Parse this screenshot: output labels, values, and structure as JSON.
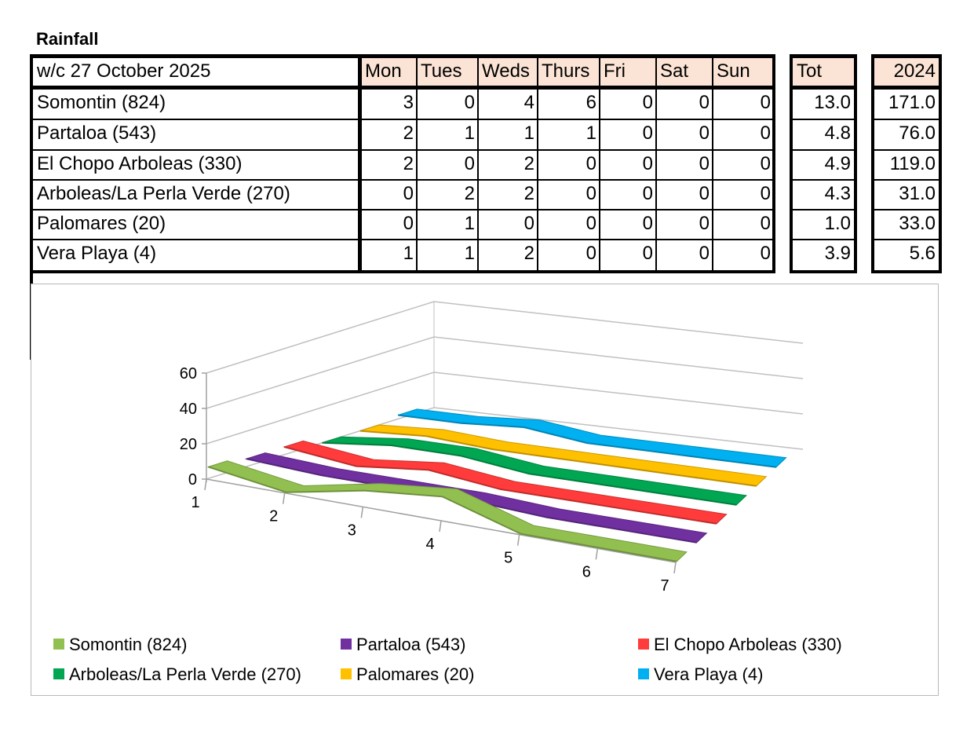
{
  "title": "Rainfall",
  "table": {
    "corner": "w/c 27 October  2025",
    "days": [
      "Mon",
      "Tues",
      "Weds",
      "Thurs",
      "Fri",
      "Sat",
      "Sun"
    ],
    "tot_header": "Tot",
    "year_header": "2024",
    "rows": [
      {
        "name": "Somontin (824)",
        "values": [
          "3",
          "0",
          "4",
          "6",
          "0",
          "0",
          "0"
        ],
        "tot": "13.0",
        "year": "171.0"
      },
      {
        "name": "Partaloa (543)",
        "values": [
          "2",
          "1",
          "1",
          "1",
          "0",
          "0",
          "0"
        ],
        "tot": "4.8",
        "year": "76.0"
      },
      {
        "name": "El Chopo Arboleas (330)",
        "values": [
          "2",
          "0",
          "2",
          "0",
          "0",
          "0",
          "0"
        ],
        "tot": "4.9",
        "year": "119.0"
      },
      {
        "name": "Arboleas/La Perla Verde (270)",
        "values": [
          "0",
          "2",
          "2",
          "0",
          "0",
          "0",
          "0"
        ],
        "tot": "4.3",
        "year": "31.0"
      },
      {
        "name": "Palomares (20)",
        "values": [
          "0",
          "1",
          "0",
          "0",
          "0",
          "0",
          "0"
        ],
        "tot": "1.0",
        "year": "33.0"
      },
      {
        "name": "Vera Playa (4)",
        "values": [
          "1",
          "1",
          "2",
          "0",
          "0",
          "0",
          "0"
        ],
        "tot": "3.9",
        "year": "5.6"
      }
    ]
  },
  "chart_data": {
    "type": "line",
    "style": "3d-ribbon",
    "x": [
      1,
      2,
      3,
      4,
      5,
      6,
      7
    ],
    "x_tick_labels": [
      "1",
      "2",
      "3",
      "4",
      "5",
      "6",
      "7"
    ],
    "y_tick_labels": [
      "0",
      "20",
      "40",
      "60"
    ],
    "ylim": [
      0,
      60
    ],
    "grid": true,
    "legend_position": "bottom",
    "series": [
      {
        "name": "Somontin (824)",
        "values": [
          3,
          0,
          4,
          6,
          0,
          0,
          0
        ],
        "color": "#92c050"
      },
      {
        "name": "Partaloa (543)",
        "values": [
          2,
          1,
          1,
          1,
          0,
          0,
          0
        ],
        "color": "#7030a0"
      },
      {
        "name": "El Chopo Arboleas (330)",
        "values": [
          2,
          0,
          2,
          0,
          0,
          0,
          0
        ],
        "color": "#ff3b3b"
      },
      {
        "name": "Arboleas/La Perla Verde (270)",
        "values": [
          0,
          2,
          2,
          0,
          0,
          0,
          0
        ],
        "color": "#00a651"
      },
      {
        "name": "Palomares (20)",
        "values": [
          0,
          1,
          0,
          0,
          0,
          0,
          0
        ],
        "color": "#ffc000"
      },
      {
        "name": "Vera Playa (4)",
        "values": [
          1,
          1,
          2,
          0,
          0,
          0,
          0
        ],
        "color": "#00b0f0"
      }
    ]
  }
}
